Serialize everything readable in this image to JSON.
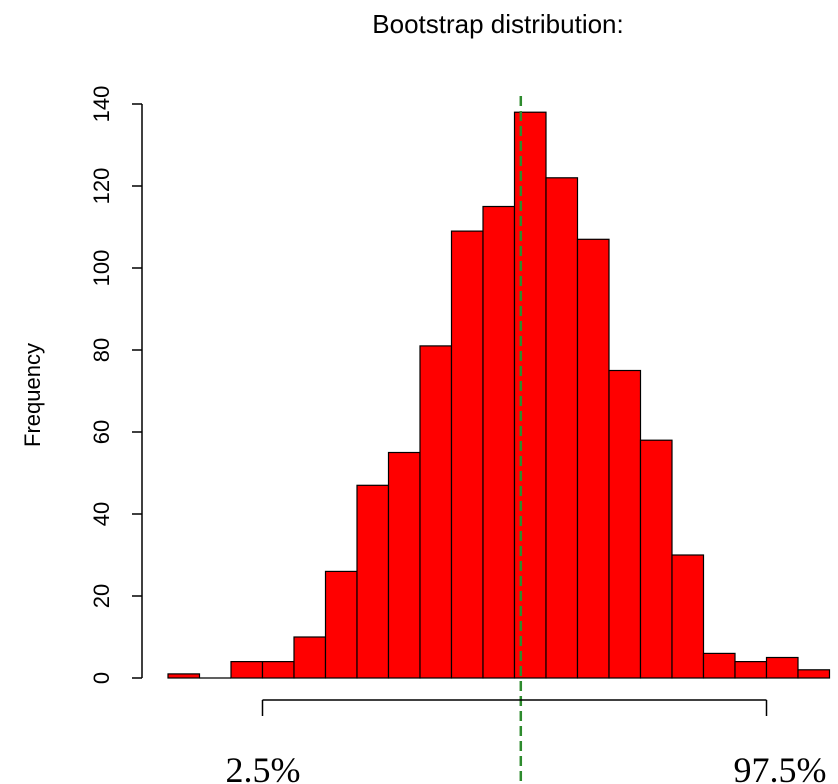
{
  "chart_data": {
    "type": "bar",
    "title": "Bootstrap distribution:",
    "xlabel": "",
    "ylabel": "Frequency",
    "ylim": [
      0,
      140
    ],
    "yticks": [
      0,
      20,
      40,
      60,
      80,
      100,
      120,
      140
    ],
    "grid": false,
    "values": [
      1,
      0,
      4,
      4,
      10,
      26,
      47,
      55,
      81,
      109,
      115,
      138,
      122,
      107,
      75,
      58,
      30,
      6,
      4,
      5,
      2
    ],
    "bar_color": "#ff0000",
    "bar_edge_color": "#000000",
    "mean_line": {
      "bin_position": 11.2,
      "color": "#2e8b2e",
      "style": "dashed"
    },
    "interval": {
      "start_bin": 3,
      "end_bin": 19,
      "lower_label": "2.5%",
      "upper_label": "97.5%"
    }
  }
}
